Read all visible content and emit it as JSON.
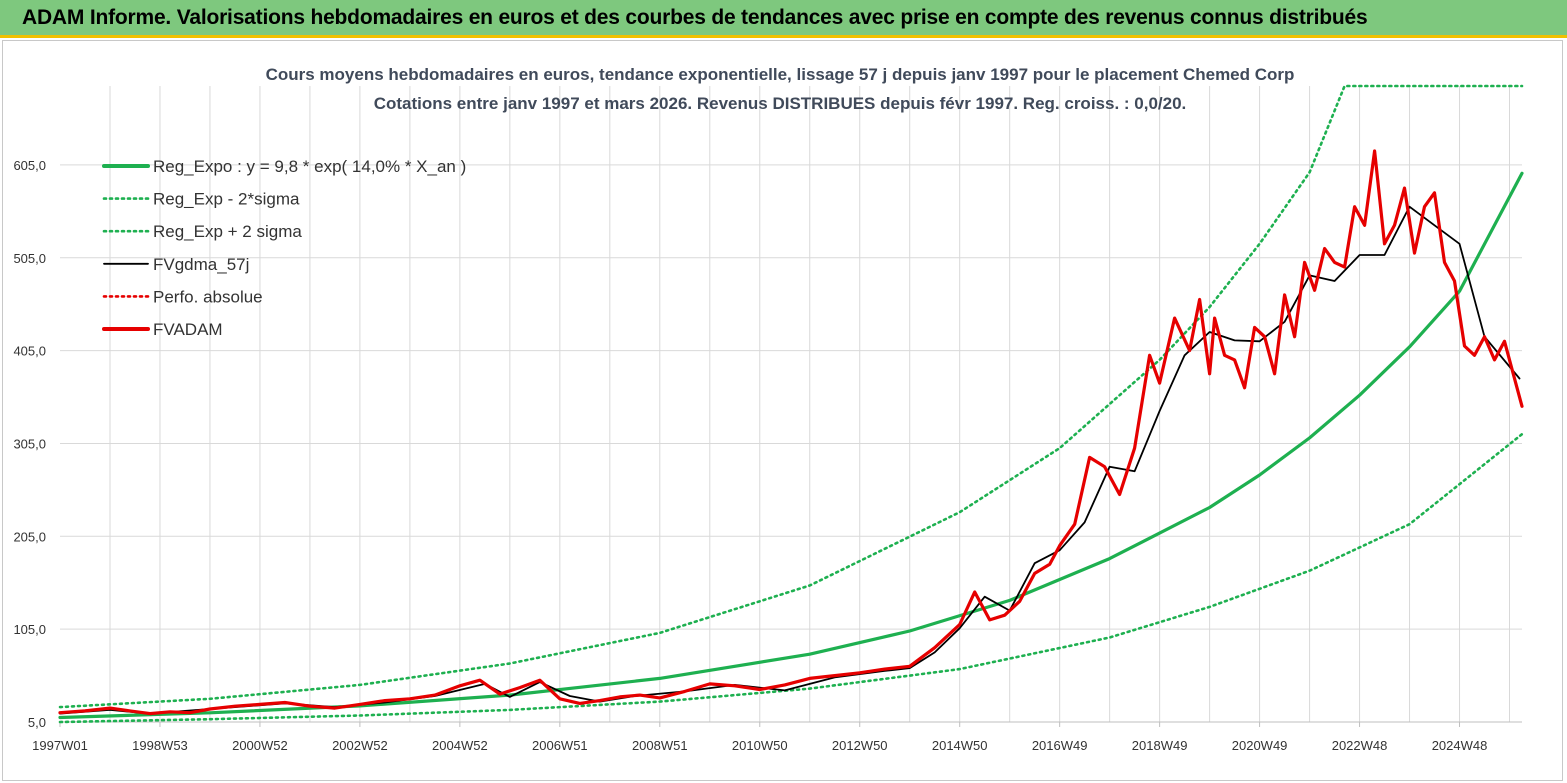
{
  "banner": {
    "title": "ADAM Informe. Valorisations hebdomadaires en euros et des courbes de tendances avec prise en compte des revenus connus distribués"
  },
  "colors": {
    "banner_bg": "#7ec87e",
    "trend_green": "#1eb050",
    "price_red": "#e60000",
    "smooth_black": "#000000",
    "grid": "#d9d9d9"
  },
  "chart_data": {
    "type": "line",
    "title": "Cours moyens hebdomadaires en euros, tendance exponentielle, lissage 57 j depuis janv 1997 pour le placement Chemed Corp",
    "subtitle": "Cotations entre janv 1997 et mars 2026. Revenus DISTRIBUES depuis févr 1997. Reg. croiss. : 0,0/20.",
    "ylim": [
      5,
      690
    ],
    "xlim": [
      1997.0,
      2026.25
    ],
    "grid": true,
    "legend_position": "top-left",
    "y_ticks": [
      "5,0",
      "105,0",
      "205,0",
      "305,0",
      "405,0",
      "505,0",
      "605,0"
    ],
    "y_tick_values": [
      5,
      105,
      205,
      305,
      405,
      505,
      605
    ],
    "x_ticks": [
      "1997W01",
      "1998W53",
      "2000W52",
      "2002W52",
      "2004W52",
      "2006W51",
      "2008W51",
      "2010W50",
      "2012W50",
      "2014W50",
      "2016W49",
      "2018W49",
      "2020W49",
      "2022W48",
      "2024W48"
    ],
    "x_tick_values": [
      1997.0,
      1999.0,
      2001.0,
      2003.0,
      2005.0,
      2007.0,
      2009.0,
      2011.0,
      2013.0,
      2015.0,
      2017.0,
      2019.0,
      2021.0,
      2023.0,
      2025.0
    ],
    "series": [
      {
        "name": "Reg_Expo : y = 9,8 * exp( 14,0% *  X_an )",
        "style": "solid-thick",
        "color": "#1eb050",
        "x": [
          1997.0,
          2000.0,
          2003.0,
          2006.0,
          2009.0,
          2012.0,
          2014.0,
          2016.0,
          2018.0,
          2020.0,
          2021.0,
          2022.0,
          2023.0,
          2024.0,
          2025.0,
          2026.25
        ],
        "y": [
          9.8,
          14.9,
          22.3,
          34,
          52,
          78,
          103,
          136,
          181,
          236,
          271,
          311,
          357,
          409,
          469,
          596
        ]
      },
      {
        "name": "Reg_Exp - 2*sigma",
        "style": "dotted",
        "color": "#1eb050",
        "x": [
          1997.0,
          2000.0,
          2003.0,
          2006.0,
          2009.0,
          2012.0,
          2015.0,
          2018.0,
          2020.0,
          2022.0,
          2024.0,
          2026.25
        ],
        "y": [
          5,
          8,
          12,
          18,
          27,
          41,
          62,
          96,
          129,
          168,
          218,
          315
        ]
      },
      {
        "name": "Reg_Exp + 2 sigma",
        "style": "dotted",
        "color": "#1eb050",
        "x": [
          1997.0,
          2000.0,
          2003.0,
          2006.0,
          2009.0,
          2012.0,
          2015.0,
          2017.0,
          2019.0,
          2020.0,
          2021.0,
          2022.0,
          2022.7,
          2026.25
        ],
        "y": [
          21,
          30,
          45,
          68,
          101,
          152,
          231,
          300,
          395,
          452,
          520,
          597,
          690,
          690
        ]
      },
      {
        "name": "FVgdma_57j",
        "style": "solid-thin",
        "color": "#000000",
        "x": [
          1997.0,
          1998.0,
          1998.8,
          1999.5,
          2000.5,
          2001.5,
          2002.5,
          2003.5,
          2004.5,
          2005.5,
          2006.0,
          2006.6,
          2007.2,
          2007.8,
          2008.5,
          2009.5,
          2010.5,
          2011.5,
          2012.5,
          2013.5,
          2014.0,
          2014.5,
          2015.0,
          2015.5,
          2016.0,
          2016.5,
          2017.0,
          2017.5,
          2018.0,
          2018.5,
          2019.0,
          2019.5,
          2020.0,
          2020.5,
          2021.0,
          2021.5,
          2022.0,
          2022.5,
          2023.0,
          2023.5,
          2024.0,
          2024.5,
          2025.0,
          2025.5,
          2026.2
        ],
        "y": [
          14,
          18,
          14,
          17,
          21,
          25,
          21,
          26,
          33,
          46,
          32,
          48,
          33,
          27,
          33,
          38,
          45,
          39,
          53,
          60,
          63,
          80,
          106,
          140,
          125,
          176,
          190,
          220,
          280,
          275,
          340,
          400,
          425,
          416,
          415,
          436,
          486,
          480,
          508,
          508,
          560,
          540,
          520,
          420,
          375
        ]
      },
      {
        "name": "Perfo. absolue",
        "style": "dotted",
        "color": "#e60000",
        "x": [],
        "y": []
      },
      {
        "name": "FVADAM",
        "style": "solid-thick",
        "color": "#e60000",
        "x": [
          1997.0,
          1997.5,
          1998.0,
          1998.4,
          1998.8,
          1999.2,
          1999.6,
          2000.0,
          2000.5,
          2001.0,
          2001.5,
          2002.0,
          2002.5,
          2003.0,
          2003.5,
          2004.0,
          2004.5,
          2005.0,
          2005.4,
          2005.8,
          2006.2,
          2006.6,
          2007.0,
          2007.4,
          2007.8,
          2008.2,
          2008.6,
          2009.0,
          2009.5,
          2010.0,
          2010.5,
          2011.0,
          2011.5,
          2012.0,
          2012.5,
          2013.0,
          2013.5,
          2014.0,
          2014.5,
          2015.0,
          2015.3,
          2015.6,
          2015.9,
          2016.2,
          2016.5,
          2016.8,
          2017.0,
          2017.3,
          2017.6,
          2017.9,
          2018.2,
          2018.5,
          2018.8,
          2019.0,
          2019.3,
          2019.6,
          2019.8,
          2020.0,
          2020.1,
          2020.3,
          2020.5,
          2020.7,
          2020.9,
          2021.1,
          2021.3,
          2021.5,
          2021.7,
          2021.9,
          2022.1,
          2022.3,
          2022.5,
          2022.7,
          2022.9,
          2023.1,
          2023.3,
          2023.5,
          2023.7,
          2023.9,
          2024.1,
          2024.3,
          2024.5,
          2024.7,
          2024.9,
          2025.1,
          2025.3,
          2025.5,
          2025.7,
          2025.9,
          2026.1,
          2026.25
        ],
        "y": [
          15,
          17,
          20,
          17,
          14,
          16,
          15,
          19,
          22,
          24,
          26,
          22,
          20,
          24,
          28,
          30,
          34,
          44,
          50,
          35,
          42,
          50,
          30,
          25,
          28,
          32,
          34,
          31,
          38,
          46,
          44,
          40,
          45,
          52,
          55,
          58,
          62,
          65,
          85,
          110,
          145,
          115,
          120,
          135,
          165,
          175,
          195,
          218,
          290,
          280,
          250,
          300,
          400,
          370,
          440,
          405,
          460,
          380,
          440,
          400,
          395,
          365,
          430,
          420,
          380,
          465,
          420,
          500,
          470,
          515,
          500,
          495,
          560,
          540,
          620,
          520,
          540,
          580,
          510,
          560,
          575,
          500,
          480,
          410,
          400,
          420,
          395,
          415,
          375,
          345
        ]
      }
    ]
  }
}
